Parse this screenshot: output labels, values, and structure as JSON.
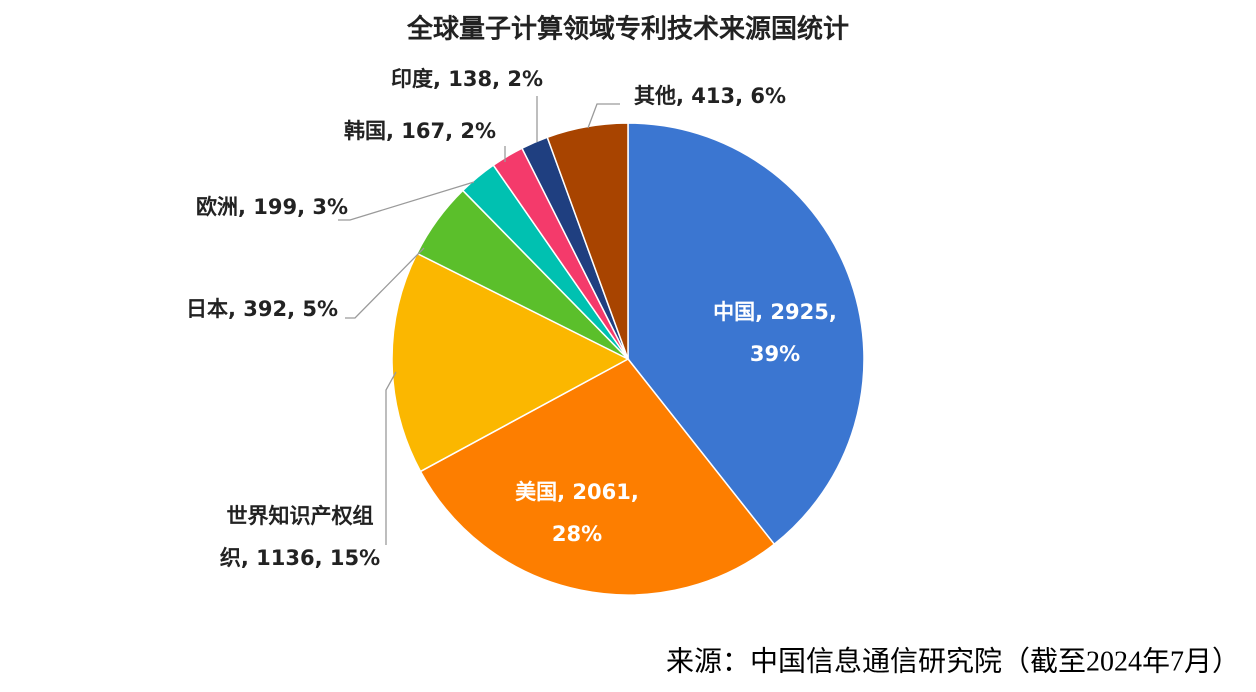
{
  "chart_data": {
    "type": "pie",
    "title": "全球量子计算领域专利技术来源国统计",
    "values": [
      2925,
      2061,
      1136,
      392,
      199,
      167,
      138,
      413
    ],
    "value_labels": [
      [
        "中国, 2925,",
        "39%"
      ],
      [
        "美国, 2061,",
        "28%"
      ],
      [
        "世界知识产权组",
        "织, 1136, 15%"
      ],
      [
        "日本, 392, 5%"
      ],
      [
        "欧洲, 199, 3%"
      ],
      [
        "韩国, 167, 2%"
      ],
      [
        "印度, 138, 2%"
      ],
      [
        "其他, 413, 6%"
      ]
    ],
    "colors": [
      "#3b76d1",
      "#fd7e00",
      "#fbb700",
      "#5bbf2b",
      "#00c1b1",
      "#f43a6b",
      "#1f3f80",
      "#a84400"
    ],
    "source": "来源：中国信息通信研究院（截至2024年7月）"
  }
}
